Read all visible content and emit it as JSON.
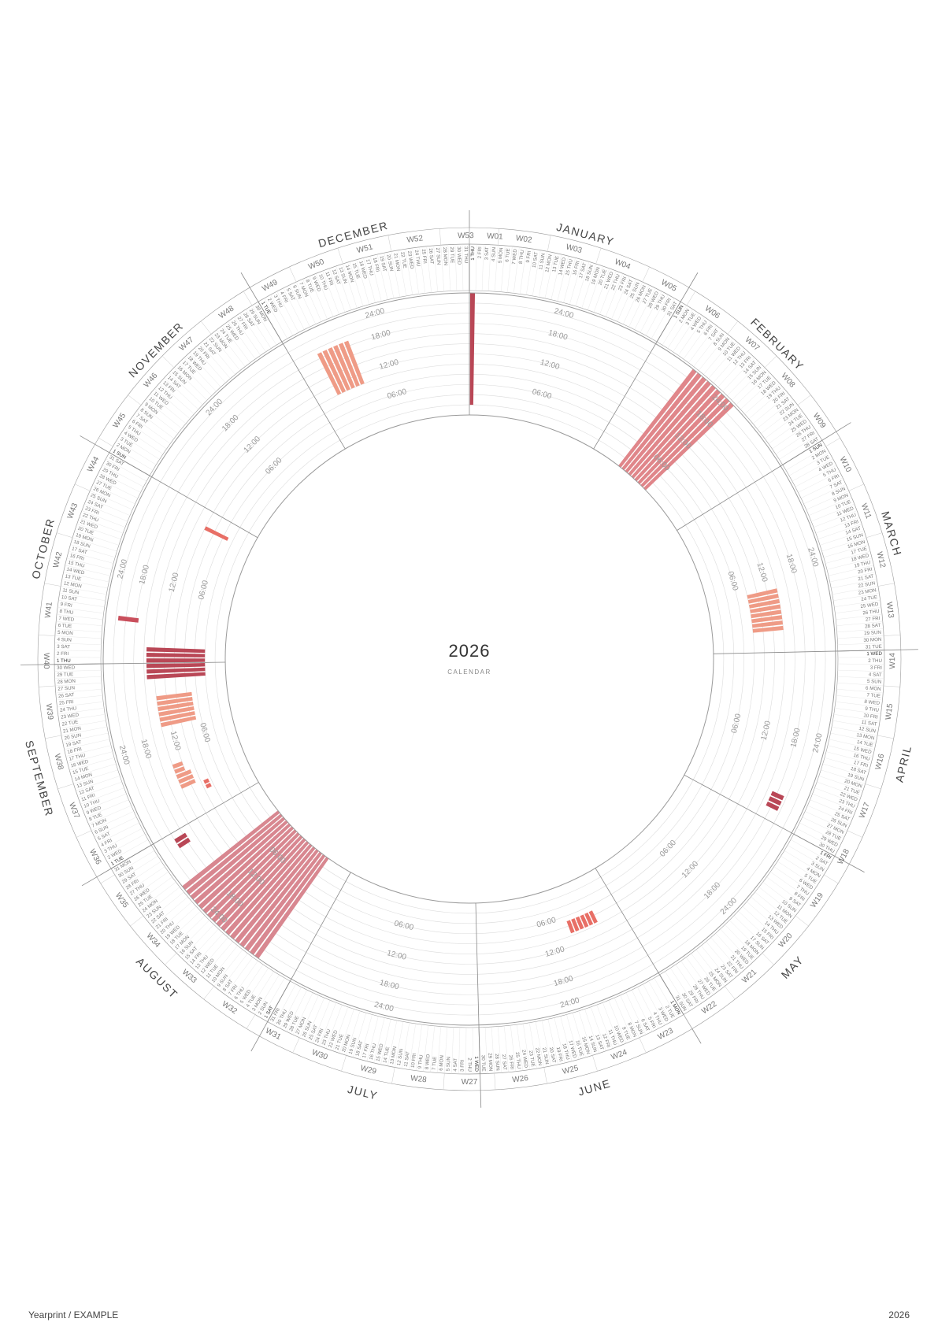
{
  "calendar": {
    "year_label": "2026",
    "subtitle": "CALENDAR",
    "year": 2026,
    "months": [
      "JANUARY",
      "FEBRUARY",
      "MARCH",
      "APRIL",
      "MAY",
      "JUNE",
      "JULY",
      "AUGUST",
      "SEPTEMBER",
      "OCTOBER",
      "NOVEMBER",
      "DECEMBER"
    ],
    "weekday_abbr": [
      "SUN",
      "MON",
      "TUE",
      "WED",
      "THU",
      "FRI",
      "SAT"
    ],
    "hour_labels": [
      "06:00",
      "12:00",
      "18:00",
      "24:00"
    ],
    "colors": {
      "line": "#9a9a9a",
      "grid": "#dcdcdc",
      "text": "#666666",
      "event_light": "#ef9b86",
      "event_mid": "#e58a8c",
      "event_dark": "#b94756"
    },
    "events": [
      {
        "start_day": 1,
        "end_day": 1,
        "from_hour": 2,
        "to_hour": 24,
        "color": "#b94756"
      },
      {
        "start_day": 39,
        "end_day": 47,
        "from_hour": 0,
        "to_hour": 24,
        "color": "#e0868a"
      },
      {
        "start_day": 79,
        "end_day": 86,
        "from_hour": 8,
        "to_hour": 14,
        "color": "#ef9b86"
      },
      {
        "start_day": 116,
        "end_day": 118,
        "from_hour": 17,
        "to_hour": 19.5,
        "color": "#b94756"
      },
      {
        "start_day": 157,
        "end_day": 162,
        "from_hour": 7,
        "to_hour": 9.5,
        "color": "#e86f66"
      },
      {
        "start_day": 219,
        "end_day": 235,
        "from_hour": 0,
        "to_hour": 24,
        "color": "#d88790"
      },
      {
        "start_day": 241,
        "end_day": 242,
        "from_hour": 17.5,
        "to_hour": 20,
        "color": "#b94756"
      },
      {
        "start_day": 248,
        "end_day": 249,
        "from_hour": 8.5,
        "to_hour": 9.5,
        "color": "#e86f66"
      },
      {
        "start_day": 250,
        "end_day": 252,
        "from_hour": 11,
        "to_hour": 14,
        "color": "#ef9b86"
      },
      {
        "start_day": 253,
        "end_day": 254,
        "from_hour": 12,
        "to_hour": 14,
        "color": "#ef9b86"
      },
      {
        "start_day": 262,
        "end_day": 267,
        "from_hour": 7,
        "to_hour": 14,
        "color": "#ef9b86"
      },
      {
        "start_day": 271,
        "end_day": 276,
        "from_hour": 4,
        "to_hour": 15.5,
        "color": "#b94756"
      },
      {
        "start_day": 281,
        "end_day": 281,
        "from_hour": 17.5,
        "to_hour": 21.5,
        "color": "#c94f5c"
      },
      {
        "start_day": 301,
        "end_day": 301,
        "from_hour": 5,
        "to_hour": 10,
        "color": "#e86f66"
      },
      {
        "start_day": 339,
        "end_day": 344,
        "from_hour": 10,
        "to_hour": 19,
        "color": "#ef9b86"
      }
    ]
  },
  "footer": {
    "left": "Yearprint / EXAMPLE",
    "right": "2026"
  }
}
